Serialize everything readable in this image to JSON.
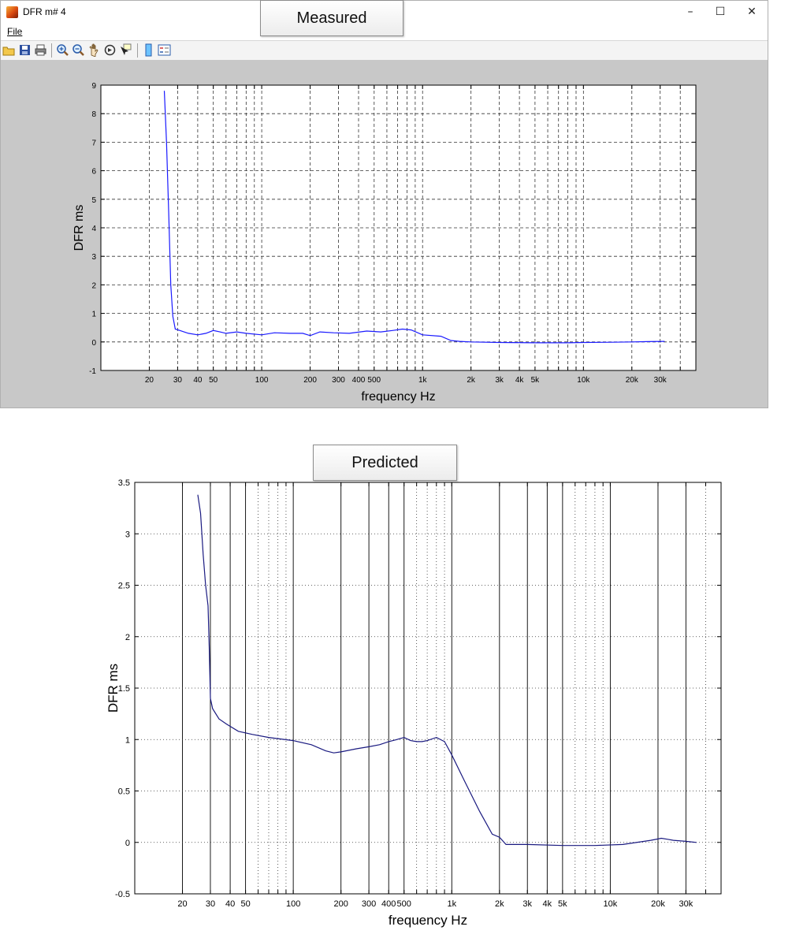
{
  "window": {
    "title": "DFR m# 4",
    "menu_file": "File",
    "toolbar": [
      "open-icon",
      "save-icon",
      "print-icon",
      "zoom-in-icon",
      "zoom-out-icon",
      "pan-icon",
      "rotate-icon",
      "data-cursor-icon",
      "colorbar-icon",
      "legend-icon"
    ]
  },
  "chart_data": [
    {
      "type": "line",
      "title": "Measured",
      "xlabel": "frequency   Hz",
      "ylabel": "DFR ms",
      "xscale": "log",
      "xlim": [
        10,
        50000
      ],
      "ylim": [
        -1,
        9
      ],
      "yticks": [
        "-1",
        "0",
        "1",
        "2",
        "3",
        "4",
        "5",
        "6",
        "7",
        "8",
        "9"
      ],
      "xtick_labels": [
        {
          "x": 20,
          "label": "20"
        },
        {
          "x": 30,
          "label": "30"
        },
        {
          "x": 40,
          "label": "40"
        },
        {
          "x": 50,
          "label": "50"
        },
        {
          "x": 100,
          "label": "100"
        },
        {
          "x": 200,
          "label": "200"
        },
        {
          "x": 300,
          "label": "300"
        },
        {
          "x": 400,
          "label": "400"
        },
        {
          "x": 500,
          "label": "500"
        },
        {
          "x": 1000,
          "label": "1k"
        },
        {
          "x": 2000,
          "label": "2k"
        },
        {
          "x": 3000,
          "label": "3k"
        },
        {
          "x": 4000,
          "label": "4k"
        },
        {
          "x": 5000,
          "label": "5k"
        },
        {
          "x": 10000,
          "label": "10k"
        },
        {
          "x": 20000,
          "label": "20k"
        },
        {
          "x": 30000,
          "label": "30k"
        }
      ],
      "grid": true,
      "line_color": "#1a1aff",
      "x": [
        24.8,
        25.6,
        26.4,
        27.2,
        28.0,
        29.0,
        31.0,
        35.0,
        40.0,
        45.0,
        50.0,
        55.0,
        60.0,
        70.0,
        80.0,
        100.0,
        120.0,
        150.0,
        180.0,
        200.0,
        230.0,
        280.0,
        350.0,
        450.0,
        550.0,
        650.0,
        750.0,
        850.0,
        1000.0,
        1300.0,
        1500.0,
        1700.0,
        2000.0,
        3000.0,
        5000.0,
        8000.0,
        10000.0,
        15000.0,
        20000.0,
        25000.0,
        32000.0
      ],
      "y": [
        8.8,
        7.0,
        4.5,
        2.0,
        0.9,
        0.45,
        0.4,
        0.3,
        0.25,
        0.3,
        0.4,
        0.35,
        0.3,
        0.35,
        0.3,
        0.25,
        0.32,
        0.3,
        0.3,
        0.22,
        0.35,
        0.32,
        0.3,
        0.38,
        0.35,
        0.4,
        0.45,
        0.42,
        0.25,
        0.2,
        0.05,
        0.02,
        0.0,
        -0.02,
        -0.03,
        -0.03,
        -0.02,
        -0.01,
        0.0,
        0.01,
        0.02
      ]
    },
    {
      "type": "line",
      "title": "Predicted",
      "xlabel": "frequency   Hz",
      "ylabel": "DFR ms",
      "xscale": "log",
      "xlim": [
        10,
        50000
      ],
      "ylim": [
        -0.5,
        3.5
      ],
      "yticks": [
        "-0.5",
        "0",
        "0.5",
        "1",
        "1.5",
        "2",
        "2.5",
        "3",
        "3.5"
      ],
      "xtick_labels": [
        {
          "x": 20,
          "label": "20"
        },
        {
          "x": 30,
          "label": "30"
        },
        {
          "x": 40,
          "label": "40"
        },
        {
          "x": 50,
          "label": "50"
        },
        {
          "x": 100,
          "label": "100"
        },
        {
          "x": 200,
          "label": "200"
        },
        {
          "x": 300,
          "label": "300"
        },
        {
          "x": 400,
          "label": "400"
        },
        {
          "x": 500,
          "label": "500"
        },
        {
          "x": 1000,
          "label": "1k"
        },
        {
          "x": 2000,
          "label": "2k"
        },
        {
          "x": 3000,
          "label": "3k"
        },
        {
          "x": 4000,
          "label": "4k"
        },
        {
          "x": 5000,
          "label": "5k"
        },
        {
          "x": 10000,
          "label": "10k"
        },
        {
          "x": 20000,
          "label": "20k"
        },
        {
          "x": 30000,
          "label": "30k"
        }
      ],
      "grid": true,
      "line_color": "#1a1a80",
      "x": [
        25.0,
        26.0,
        27.0,
        28.0,
        29.0,
        29.5,
        30.0,
        31.0,
        34.0,
        38.0,
        45.0,
        55.0,
        70.0,
        100.0,
        130.0,
        160.0,
        180.0,
        200.0,
        250.0,
        300.0,
        350.0,
        400.0,
        450.0,
        500.0,
        550.0,
        600.0,
        650.0,
        700.0,
        800.0,
        900.0,
        1000.0,
        1200.0,
        1500.0,
        1800.0,
        2000.0,
        2200.0,
        3000.0,
        5000.0,
        8000.0,
        12000.0,
        18000.0,
        21000.0,
        23000.0,
        25000.0,
        30000.0,
        35000.0
      ],
      "y": [
        3.38,
        3.2,
        2.8,
        2.5,
        2.3,
        1.9,
        1.4,
        1.3,
        1.2,
        1.15,
        1.08,
        1.05,
        1.02,
        0.99,
        0.95,
        0.89,
        0.87,
        0.88,
        0.91,
        0.93,
        0.95,
        0.98,
        1.0,
        1.02,
        0.99,
        0.98,
        0.98,
        0.99,
        1.02,
        0.98,
        0.85,
        0.6,
        0.3,
        0.08,
        0.05,
        -0.02,
        -0.02,
        -0.03,
        -0.03,
        -0.02,
        0.02,
        0.04,
        0.03,
        0.02,
        0.01,
        0.0
      ]
    }
  ]
}
